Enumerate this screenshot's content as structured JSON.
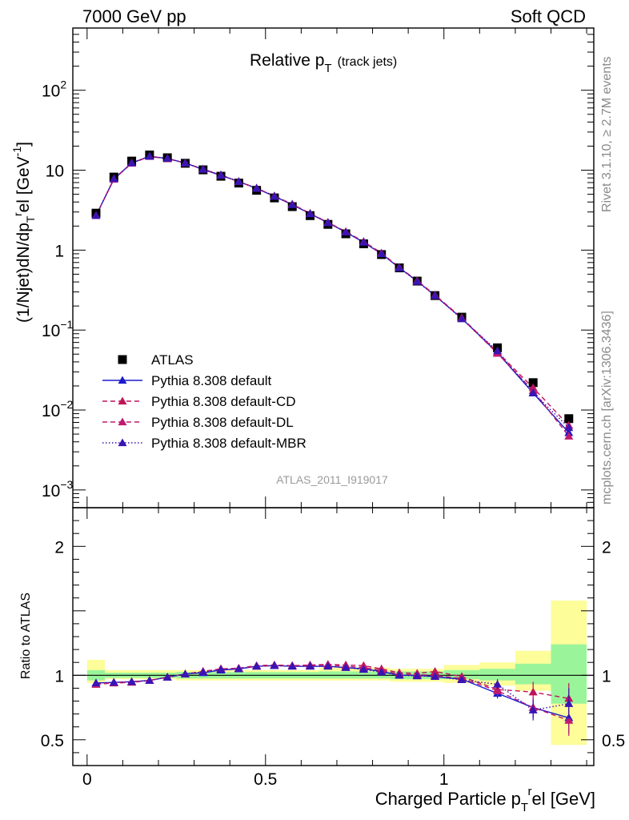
{
  "header": {
    "left": "7000 GeV pp",
    "right": "Soft QCD"
  },
  "side_labels": {
    "rivet": "Rivet 3.1.10, ≥ 2.7M events",
    "mcplots": "mcplots.cern.ch [arXiv:1306.3436]"
  },
  "colors": {
    "atlas": "#000000",
    "default": "#1a1acc",
    "cd": "#c0135a",
    "dl": "#c01a6e",
    "mbr": "#3a14b4",
    "band_green": "#9af59a",
    "band_yellow": "#fdfd9a"
  },
  "chart_data": [
    {
      "type": "scatter",
      "panel": "main",
      "title": "Relative p",
      "title_sub": "T",
      "title_note": "(track jets)",
      "ylabel": "(1/Njet)dN/dp",
      "ylabel_sub": "T",
      "ylabel_sup": "r",
      "ylabel_tail": "el [GeV",
      "ylabel_tail_sup": "-1",
      "ylabel_end": "]",
      "yscale": "log",
      "ylim": [
        0.0006,
        600
      ],
      "xlim": [
        -0.04,
        1.42
      ],
      "ytick_labels": [
        {
          "value": 0.001,
          "base": "10",
          "exp": "−3"
        },
        {
          "value": 0.01,
          "base": "10",
          "exp": "−2"
        },
        {
          "value": 0.1,
          "base": "10",
          "exp": "−1"
        },
        {
          "value": 1,
          "base": "1",
          "exp": ""
        },
        {
          "value": 10,
          "base": "10",
          "exp": ""
        },
        {
          "value": 100,
          "base": "10",
          "exp": "2"
        }
      ],
      "watermark": "ATLAS_2011_I919017",
      "legend_position": "lower-left",
      "x": [
        0.025,
        0.075,
        0.125,
        0.175,
        0.225,
        0.275,
        0.325,
        0.375,
        0.425,
        0.475,
        0.525,
        0.575,
        0.625,
        0.675,
        0.725,
        0.775,
        0.825,
        0.875,
        0.925,
        0.975,
        1.05,
        1.15,
        1.25,
        1.35
      ],
      "series": [
        {
          "name": "ATLAS",
          "key": "atlas",
          "marker": "square",
          "values": [
            2.9,
            8.2,
            13.0,
            15.5,
            14.3,
            12.2,
            10.1,
            8.4,
            6.9,
            5.6,
            4.5,
            3.5,
            2.7,
            2.1,
            1.6,
            1.2,
            0.88,
            0.6,
            0.41,
            0.27,
            0.145,
            0.06,
            0.022,
            0.0078
          ]
        },
        {
          "name": "Pythia 8.308 default",
          "key": "default",
          "marker": "triangle",
          "dash": "solid",
          "values": [
            2.7,
            7.7,
            12.3,
            14.9,
            14.0,
            12.3,
            10.2,
            8.6,
            7.2,
            5.9,
            4.7,
            3.7,
            2.85,
            2.2,
            1.68,
            1.25,
            0.9,
            0.6,
            0.41,
            0.27,
            0.14,
            0.052,
            0.0163,
            0.0052
          ]
        },
        {
          "name": "Pythia 8.308 default-CD",
          "key": "cd",
          "marker": "triangle",
          "dash": "6,4",
          "values": [
            2.7,
            7.7,
            12.2,
            14.8,
            13.9,
            12.3,
            10.3,
            8.7,
            7.2,
            5.95,
            4.75,
            3.75,
            2.88,
            2.22,
            1.7,
            1.28,
            0.92,
            0.61,
            0.415,
            0.275,
            0.142,
            0.053,
            0.019,
            0.0064
          ]
        },
        {
          "name": "Pythia 8.308 default-DL",
          "key": "dl",
          "marker": "triangle",
          "dash": "6,4",
          "values": [
            2.7,
            7.8,
            12.3,
            14.9,
            14.0,
            12.3,
            10.3,
            8.7,
            7.2,
            5.95,
            4.75,
            3.75,
            2.88,
            2.22,
            1.7,
            1.27,
            0.91,
            0.605,
            0.41,
            0.27,
            0.14,
            0.051,
            0.0175,
            0.0047
          ]
        },
        {
          "name": "Pythia 8.308 default-MBR",
          "key": "mbr",
          "marker": "triangle",
          "dash": "1.5,2.5",
          "values": [
            2.7,
            7.8,
            12.3,
            14.9,
            14.0,
            12.3,
            10.3,
            8.7,
            7.2,
            5.95,
            4.72,
            3.72,
            2.86,
            2.2,
            1.68,
            1.26,
            0.9,
            0.6,
            0.405,
            0.27,
            0.138,
            0.055,
            0.0165,
            0.006
          ]
        }
      ]
    },
    {
      "type": "scatter",
      "panel": "ratio",
      "ylabel": "Ratio to ATLAS",
      "xlabel": "Charged Particle p",
      "xlabel_sub": "T",
      "xlabel_sup": "r",
      "xlabel_tail": "el [GeV]",
      "ylim": [
        0.3,
        2.3
      ],
      "xlim": [
        -0.04,
        1.42
      ],
      "ytick_labels": [
        "0.5",
        "1",
        "2"
      ],
      "xtick_labels": [
        "0",
        "0.5",
        "1"
      ],
      "bands": [
        {
          "x0": 0.0,
          "x1": 0.05,
          "green": [
            0.96,
            1.04
          ],
          "yellow": [
            0.94,
            1.12
          ]
        },
        {
          "x0": 0.05,
          "x1": 0.25,
          "green": [
            0.98,
            1.02
          ],
          "yellow": [
            0.97,
            1.04
          ]
        },
        {
          "x0": 0.25,
          "x1": 0.65,
          "green": [
            0.975,
            1.025
          ],
          "yellow": [
            0.96,
            1.04
          ]
        },
        {
          "x0": 0.65,
          "x1": 0.85,
          "green": [
            0.975,
            1.03
          ],
          "yellow": [
            0.96,
            1.06
          ]
        },
        {
          "x0": 0.85,
          "x1": 1.0,
          "green": [
            0.97,
            1.03
          ],
          "yellow": [
            0.95,
            1.05
          ]
        },
        {
          "x0": 1.0,
          "x1": 1.1,
          "green": [
            0.97,
            1.04
          ],
          "yellow": [
            0.94,
            1.08
          ]
        },
        {
          "x0": 1.1,
          "x1": 1.2,
          "green": [
            0.96,
            1.05
          ],
          "yellow": [
            0.92,
            1.1
          ]
        },
        {
          "x0": 1.2,
          "x1": 1.3,
          "green": [
            0.93,
            1.09
          ],
          "yellow": [
            0.88,
            1.19
          ]
        },
        {
          "x0": 1.3,
          "x1": 1.4,
          "green": [
            0.78,
            1.24
          ],
          "yellow": [
            0.46,
            1.58
          ]
        }
      ],
      "series": [
        {
          "name": "Pythia 8.308 default",
          "key": "default",
          "dash": "solid",
          "values": [
            0.94,
            0.945,
            0.95,
            0.96,
            0.985,
            1.01,
            1.02,
            1.04,
            1.05,
            1.07,
            1.075,
            1.07,
            1.07,
            1.07,
            1.06,
            1.05,
            1.03,
            1.0,
            1.0,
            0.99,
            0.97,
            0.86,
            0.75,
            0.67
          ]
        },
        {
          "name": "Pythia 8.308 default-CD",
          "key": "cd",
          "dash": "6,4",
          "values": [
            0.93,
            0.94,
            0.945,
            0.96,
            0.985,
            1.01,
            1.03,
            1.05,
            1.055,
            1.075,
            1.08,
            1.075,
            1.08,
            1.085,
            1.08,
            1.075,
            1.05,
            1.02,
            1.015,
            1.03,
            0.99,
            0.89,
            0.87,
            0.82
          ]
        },
        {
          "name": "Pythia 8.308 default-DL",
          "key": "dl",
          "dash": "6,4",
          "values": [
            0.93,
            0.945,
            0.95,
            0.96,
            0.985,
            1.01,
            1.03,
            1.05,
            1.055,
            1.07,
            1.075,
            1.075,
            1.075,
            1.08,
            1.07,
            1.06,
            1.04,
            1.01,
            1.005,
            1.0,
            0.975,
            0.88,
            0.75,
            0.65
          ]
        },
        {
          "name": "Pythia 8.308 default-MBR",
          "key": "mbr",
          "dash": "1.5,2.5",
          "values": [
            0.94,
            0.945,
            0.95,
            0.96,
            0.985,
            1.01,
            1.025,
            1.045,
            1.05,
            1.07,
            1.075,
            1.07,
            1.07,
            1.07,
            1.06,
            1.045,
            1.025,
            1.0,
            0.995,
            0.99,
            0.965,
            0.93,
            0.73,
            0.78
          ]
        }
      ]
    }
  ]
}
